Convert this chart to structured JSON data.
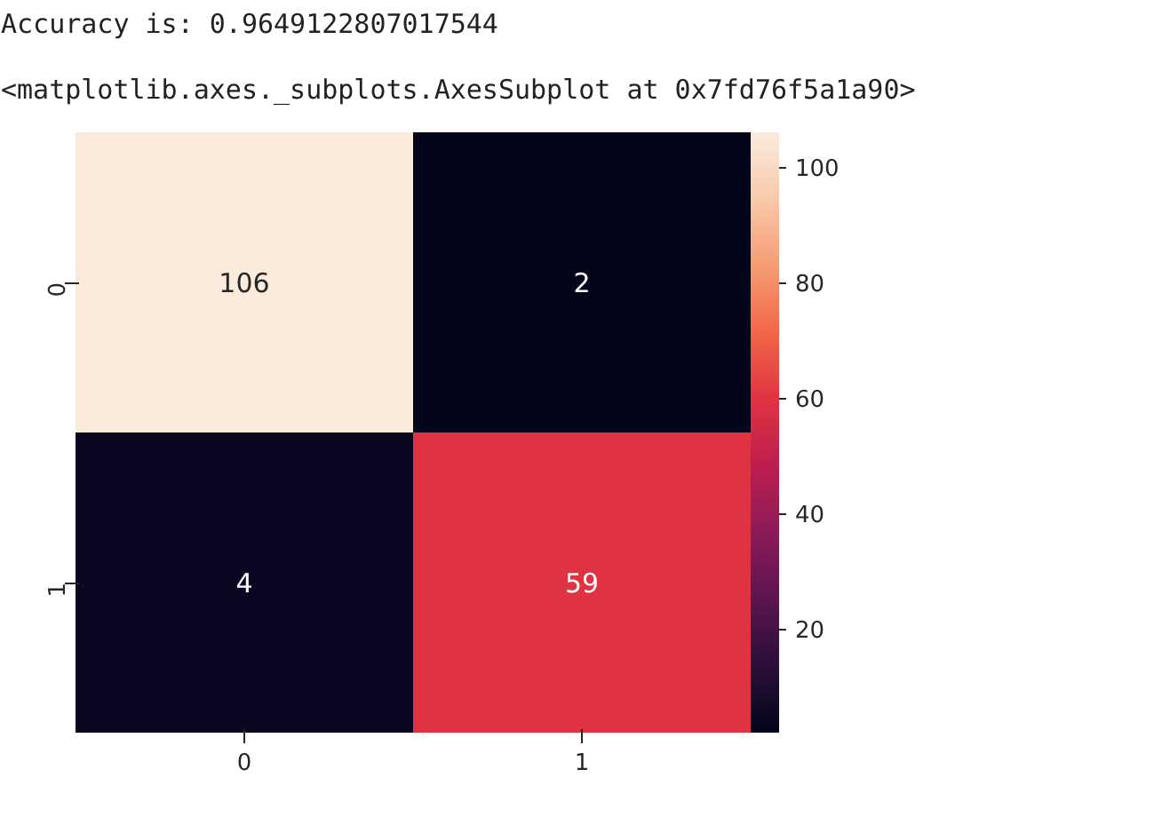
{
  "chart_data": {
    "type": "heatmap",
    "categories": [
      "0",
      "1"
    ],
    "y_categories": [
      "0",
      "1"
    ],
    "cells": [
      [
        106,
        2
      ],
      [
        4,
        59
      ]
    ],
    "clim": [
      2,
      106
    ],
    "cticks": [
      20,
      40,
      60,
      80,
      100
    ],
    "data_labels": true,
    "annotations": [
      "Accuracy is:  0.9649122807017544",
      "<matplotlib.axes._subplots.AxesSubplot at 0x7fd76f5a1a90>"
    ]
  }
}
